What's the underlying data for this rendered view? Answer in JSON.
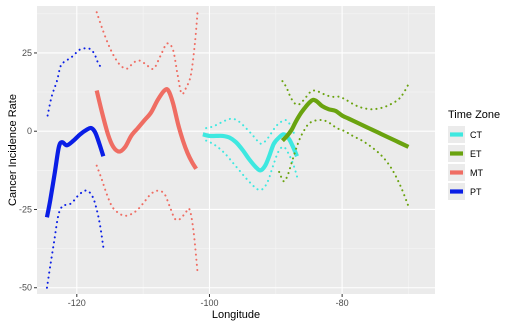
{
  "chart_data": {
    "type": "line",
    "xlabel": "Longitude",
    "ylabel": "Cancer Incidence Rate",
    "xlim": [
      -126,
      -66
    ],
    "ylim": [
      -52,
      40
    ],
    "x_ticks": [
      -120,
      -100,
      -80
    ],
    "x_tick_labels": [
      "-120",
      "-100",
      "-80"
    ],
    "y_ticks": [
      -50,
      -25,
      0,
      25
    ],
    "y_tick_labels": [
      "-50",
      "-25",
      "0",
      "25"
    ],
    "grid": true,
    "legend": {
      "title": "Time Zone",
      "placement": "right",
      "entries": [
        "CT",
        "ET",
        "MT",
        "PT"
      ]
    },
    "colors": {
      "CT": "#3ee8e0",
      "ET": "#6aa30f",
      "MT": "#ef6d63",
      "PT": "#0a1ee6"
    },
    "series": [
      {
        "name": "PT",
        "fit": [
          [
            -124.5,
            -27.5
          ],
          [
            -124,
            -22
          ],
          [
            -123.3,
            -13
          ],
          [
            -122.7,
            -5
          ],
          [
            -122.2,
            -3.5
          ],
          [
            -121.5,
            -4.5
          ],
          [
            -120.5,
            -3
          ],
          [
            -119.5,
            -1
          ],
          [
            -118.5,
            0.5
          ],
          [
            -117.8,
            1
          ],
          [
            -117.2,
            -0.5
          ],
          [
            -116.6,
            -4
          ],
          [
            -116,
            -8
          ]
        ],
        "upper": [
          [
            -124.4,
            5
          ],
          [
            -123.8,
            11
          ],
          [
            -123,
            16
          ],
          [
            -122.4,
            21
          ],
          [
            -121.6,
            22.5
          ],
          [
            -120.6,
            24
          ],
          [
            -119.6,
            26
          ],
          [
            -118.6,
            26.5
          ],
          [
            -117.8,
            26
          ],
          [
            -117.2,
            24
          ],
          [
            -116.6,
            21
          ],
          [
            -116,
            21.5
          ]
        ],
        "lower": [
          [
            -124.5,
            -50
          ],
          [
            -124,
            -43
          ],
          [
            -123.4,
            -35
          ],
          [
            -122.8,
            -27
          ],
          [
            -122.2,
            -24
          ],
          [
            -121.6,
            -23.5
          ],
          [
            -120.8,
            -23
          ],
          [
            -120,
            -21
          ],
          [
            -119.2,
            -19.5
          ],
          [
            -118.4,
            -19
          ],
          [
            -117.6,
            -21
          ],
          [
            -117,
            -25
          ],
          [
            -116.5,
            -30
          ],
          [
            -116,
            -37
          ]
        ]
      },
      {
        "name": "MT",
        "fit": [
          [
            -117,
            13
          ],
          [
            -116.2,
            6
          ],
          [
            -115.3,
            -1
          ],
          [
            -114.5,
            -5
          ],
          [
            -113.6,
            -6.5
          ],
          [
            -112.7,
            -5
          ],
          [
            -111.8,
            -1.5
          ],
          [
            -110.8,
            1
          ],
          [
            -109.8,
            3.5
          ],
          [
            -108.8,
            6
          ],
          [
            -107.8,
            10
          ],
          [
            -106.8,
            13
          ],
          [
            -106.2,
            13
          ],
          [
            -105.5,
            9
          ],
          [
            -104.7,
            2
          ],
          [
            -104,
            -3
          ],
          [
            -103.3,
            -7
          ],
          [
            -102.6,
            -10
          ],
          [
            -102,
            -12
          ]
        ],
        "upper": [
          [
            -117,
            38
          ],
          [
            -116.2,
            33
          ],
          [
            -115.3,
            28
          ],
          [
            -114.4,
            24
          ],
          [
            -113.4,
            21
          ],
          [
            -112.4,
            20
          ],
          [
            -111.4,
            22
          ],
          [
            -110.4,
            22.5
          ],
          [
            -109.4,
            21
          ],
          [
            -108.4,
            20
          ],
          [
            -107.4,
            24
          ],
          [
            -106.4,
            28
          ],
          [
            -105.5,
            26
          ],
          [
            -104.8,
            18
          ],
          [
            -104.2,
            12
          ],
          [
            -103.5,
            14
          ],
          [
            -102.8,
            18
          ],
          [
            -102.2,
            28
          ],
          [
            -101.8,
            38
          ]
        ],
        "lower": [
          [
            -117,
            -11
          ],
          [
            -116.3,
            -15
          ],
          [
            -115.5,
            -20
          ],
          [
            -114.7,
            -24
          ],
          [
            -113.8,
            -26
          ],
          [
            -112.8,
            -27
          ],
          [
            -111.8,
            -26.5
          ],
          [
            -110.8,
            -25
          ],
          [
            -109.8,
            -22.5
          ],
          [
            -108.8,
            -20
          ],
          [
            -107.8,
            -19
          ],
          [
            -106.8,
            -20
          ],
          [
            -106,
            -24
          ],
          [
            -105.2,
            -28
          ],
          [
            -104.4,
            -28
          ],
          [
            -103.6,
            -26
          ],
          [
            -103,
            -25
          ],
          [
            -102.4,
            -32
          ],
          [
            -101.8,
            -45
          ]
        ]
      },
      {
        "name": "CT",
        "fit": [
          [
            -101,
            -1
          ],
          [
            -100,
            -1.5
          ],
          [
            -99,
            -1.5
          ],
          [
            -98,
            -1.5
          ],
          [
            -97,
            -2
          ],
          [
            -96,
            -3.5
          ],
          [
            -95,
            -6
          ],
          [
            -94,
            -9
          ],
          [
            -93,
            -11.5
          ],
          [
            -92.3,
            -12.5
          ],
          [
            -91.6,
            -11
          ],
          [
            -91,
            -8
          ],
          [
            -90.3,
            -4
          ],
          [
            -89.5,
            -2
          ],
          [
            -88.8,
            -1
          ],
          [
            -88,
            -2.5
          ],
          [
            -87.3,
            -5.5
          ],
          [
            -86.8,
            -8
          ]
        ],
        "upper": [
          [
            -100.5,
            1
          ],
          [
            -99.5,
            1.5
          ],
          [
            -98.5,
            2.5
          ],
          [
            -97.5,
            3.5
          ],
          [
            -96.5,
            4
          ],
          [
            -95.5,
            3
          ],
          [
            -94.5,
            1
          ],
          [
            -93.6,
            -1
          ],
          [
            -92.8,
            -3
          ],
          [
            -92.2,
            -4
          ],
          [
            -91.5,
            -3
          ],
          [
            -90.8,
            -1
          ],
          [
            -90,
            1.5
          ],
          [
            -89.2,
            3
          ],
          [
            -88.4,
            3.5
          ],
          [
            -87.7,
            1.5
          ],
          [
            -87.2,
            -1
          ]
        ],
        "lower": [
          [
            -100.5,
            -3
          ],
          [
            -99.5,
            -4
          ],
          [
            -98.5,
            -5.5
          ],
          [
            -97.5,
            -7.5
          ],
          [
            -96.5,
            -10
          ],
          [
            -95.5,
            -12.5
          ],
          [
            -94.5,
            -15
          ],
          [
            -93.6,
            -17
          ],
          [
            -92.8,
            -18.5
          ],
          [
            -92,
            -18.5
          ],
          [
            -91.2,
            -16
          ],
          [
            -90.4,
            -11
          ],
          [
            -89.6,
            -6.5
          ],
          [
            -88.8,
            -5
          ],
          [
            -88,
            -7.5
          ],
          [
            -87.3,
            -11
          ],
          [
            -86.8,
            -14.5
          ]
        ]
      },
      {
        "name": "ET",
        "fit": [
          [
            -89,
            -3
          ],
          [
            -88.3,
            -1.5
          ],
          [
            -87.6,
            0.5
          ],
          [
            -87,
            3
          ],
          [
            -86.3,
            5.5
          ],
          [
            -85.6,
            7.5
          ],
          [
            -85,
            9
          ],
          [
            -84.4,
            10
          ],
          [
            -83.8,
            9.5
          ],
          [
            -83,
            8
          ],
          [
            -82,
            7
          ],
          [
            -81,
            6.5
          ],
          [
            -80,
            5
          ],
          [
            -79,
            4
          ],
          [
            -77.5,
            2.5
          ],
          [
            -76,
            1
          ],
          [
            -74.5,
            -0.5
          ],
          [
            -73,
            -2
          ],
          [
            -71.5,
            -3.5
          ],
          [
            -70,
            -5
          ]
        ],
        "upper": [
          [
            -89,
            16
          ],
          [
            -88.4,
            14
          ],
          [
            -87.8,
            11
          ],
          [
            -87.2,
            9
          ],
          [
            -86.6,
            8.5
          ],
          [
            -86,
            9.5
          ],
          [
            -85.4,
            11
          ],
          [
            -84.8,
            12.5
          ],
          [
            -84.2,
            13
          ],
          [
            -83.4,
            12.5
          ],
          [
            -82.4,
            11.5
          ],
          [
            -81.4,
            11
          ],
          [
            -80.4,
            11
          ],
          [
            -79.4,
            10
          ],
          [
            -78.2,
            8.5
          ],
          [
            -77,
            7.5
          ],
          [
            -75.5,
            7
          ],
          [
            -74,
            7.5
          ],
          [
            -72.8,
            8.5
          ],
          [
            -71.6,
            10
          ],
          [
            -70.8,
            12
          ],
          [
            -70,
            15
          ]
        ],
        "lower": [
          [
            -89.5,
            -13
          ],
          [
            -88.8,
            -16
          ],
          [
            -88.2,
            -14
          ],
          [
            -87.6,
            -10
          ],
          [
            -87,
            -6
          ],
          [
            -86.4,
            -2.5
          ],
          [
            -85.8,
            0
          ],
          [
            -85.2,
            2
          ],
          [
            -84.6,
            3
          ],
          [
            -83.8,
            3.5
          ],
          [
            -82.8,
            3.5
          ],
          [
            -81.8,
            2.5
          ],
          [
            -80.8,
            1
          ],
          [
            -79.6,
            0
          ],
          [
            -78.4,
            -1.5
          ],
          [
            -77,
            -3
          ],
          [
            -75.6,
            -5
          ],
          [
            -74.2,
            -7.5
          ],
          [
            -73,
            -10.5
          ],
          [
            -72,
            -14
          ],
          [
            -71,
            -18.5
          ],
          [
            -70,
            -24
          ]
        ]
      }
    ]
  }
}
